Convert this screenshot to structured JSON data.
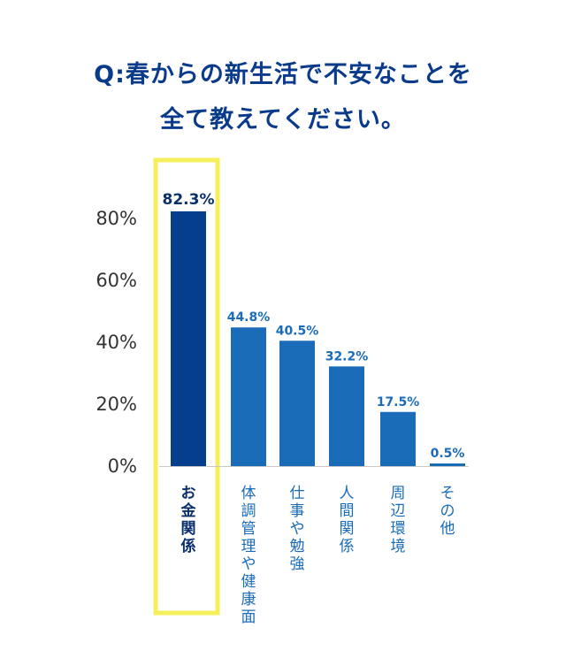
{
  "title": {
    "line1": "Q:春からの新生活で不安なことを",
    "line2": "全て教えてください。"
  },
  "chart_data": {
    "type": "bar",
    "categories": [
      "お金関係",
      "体調管理や健康面",
      "仕事や勉強",
      "人間関係",
      "周辺環境",
      "その他"
    ],
    "values": [
      82.3,
      44.8,
      40.5,
      32.2,
      17.5,
      0.5
    ],
    "value_labels": [
      "82.3%",
      "44.8%",
      "40.5%",
      "32.2%",
      "17.5%",
      "0.5%"
    ],
    "y_ticks": [
      "0%",
      "20%",
      "40%",
      "60%",
      "80%"
    ],
    "ylim": [
      0,
      90
    ],
    "highlight_index": 0,
    "colors": {
      "highlight_bar": "#053e8c",
      "bar": "#1a6bb8",
      "highlight_label": "#0a2f6b",
      "label": "#1a6bb8",
      "highlight_box": "#f4ef5a",
      "axis_text": "#333333",
      "baseline": "#c8c8c8"
    }
  }
}
